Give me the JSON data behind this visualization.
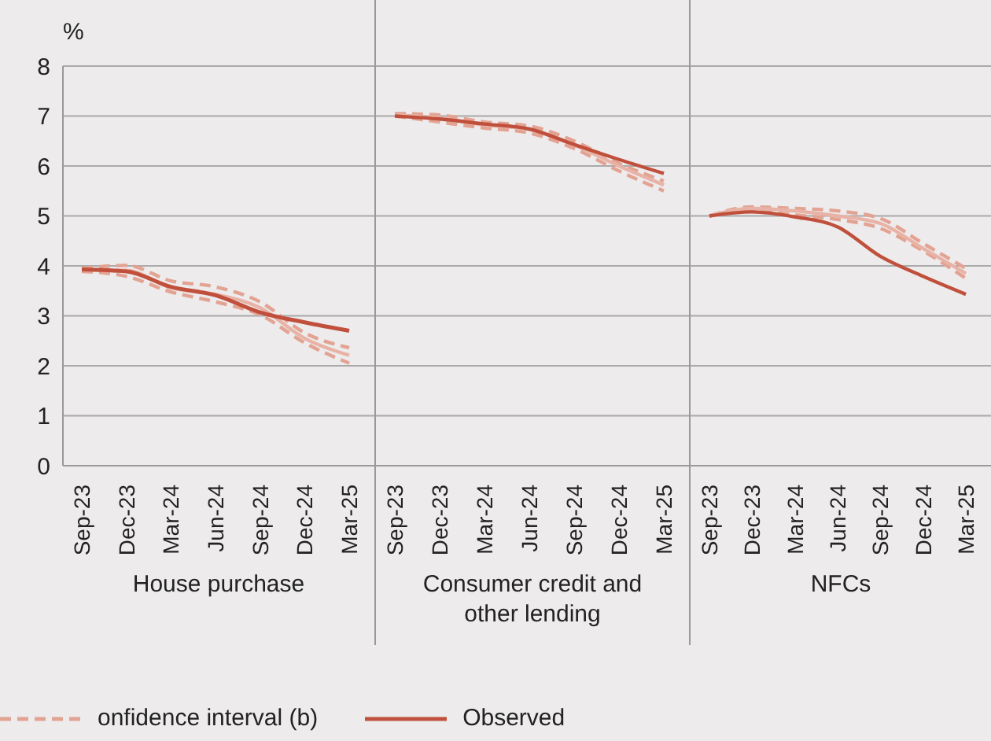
{
  "chart_data": [
    {
      "type": "line",
      "ylabel": "%",
      "xlabel": "House purchase",
      "categories": [
        "Sep-23",
        "Dec-23",
        "Mar-24",
        "Jun-24",
        "Sep-24",
        "Dec-24",
        "Mar-25"
      ],
      "ylim": [
        0,
        8
      ],
      "yticks": [
        0,
        1,
        2,
        3,
        4,
        5,
        6,
        7,
        8
      ],
      "grid": "y",
      "legend": "bottom",
      "series": [
        {
          "name": "onfidence interval (b)",
          "color": "#e3a393",
          "line_style": "dashed",
          "values": [
            3.95,
            4.01,
            3.7,
            3.58,
            3.28,
            2.66,
            2.36
          ]
        },
        {
          "color": "#e3a393",
          "line_style": "dashed",
          "values": [
            3.89,
            3.79,
            3.48,
            3.28,
            3.02,
            2.46,
            2.05
          ]
        },
        {
          "color": "#e8b3a6",
          "line_style": "solid",
          "values": [
            3.92,
            3.91,
            3.56,
            3.43,
            3.16,
            2.55,
            2.21
          ]
        },
        {
          "name": "Observed",
          "color": "#c0503c",
          "line_style": "solid",
          "values": [
            3.93,
            3.89,
            3.58,
            3.41,
            3.07,
            2.87,
            2.7
          ]
        }
      ]
    },
    {
      "type": "line",
      "xlabel": "Consumer credit and other lending",
      "categories": [
        "Sep-23",
        "Dec-23",
        "Mar-24",
        "Jun-24",
        "Sep-24",
        "Dec-24",
        "Mar-25"
      ],
      "ylim": [
        0,
        8
      ],
      "yticks": [
        0,
        1,
        2,
        3,
        4,
        5,
        6,
        7,
        8
      ],
      "grid": "y",
      "tick_labels": "x",
      "series": [
        {
          "color": "#e3a393",
          "line_style": "dashed",
          "values": [
            7.05,
            7.02,
            6.88,
            6.8,
            6.5,
            6.05,
            5.7
          ]
        },
        {
          "color": "#e3a393",
          "line_style": "dashed",
          "values": [
            7.0,
            6.88,
            6.76,
            6.66,
            6.35,
            5.9,
            5.5
          ]
        },
        {
          "color": "#e8b3a6",
          "line_style": "solid",
          "values": [
            7.02,
            6.96,
            6.82,
            6.73,
            6.42,
            6.0,
            5.62
          ]
        },
        {
          "color": "#c0503c",
          "line_style": "solid",
          "values": [
            7.0,
            6.94,
            6.84,
            6.74,
            6.43,
            6.13,
            5.85
          ]
        }
      ]
    },
    {
      "type": "line",
      "xlabel": "NFCs",
      "categories": [
        "Sep-23",
        "Dec-23",
        "Mar-24",
        "Jun-24",
        "Sep-24",
        "Dec-24",
        "Mar-25"
      ],
      "ylim": [
        0,
        8
      ],
      "yticks": [
        0,
        1,
        2,
        3,
        4,
        5,
        6,
        7,
        8
      ],
      "grid": "y",
      "tick_labels": "x",
      "series": [
        {
          "color": "#e3a393",
          "line_style": "dashed",
          "values": [
            5.0,
            5.18,
            5.15,
            5.1,
            4.95,
            4.45,
            3.95
          ]
        },
        {
          "color": "#e3a393",
          "line_style": "dashed",
          "values": [
            5.0,
            5.1,
            5.02,
            4.93,
            4.75,
            4.3,
            3.75
          ]
        },
        {
          "color": "#e8b3a6",
          "line_style": "solid",
          "values": [
            5.0,
            5.15,
            5.1,
            5.0,
            4.85,
            4.35,
            3.85
          ]
        },
        {
          "color": "#c0503c",
          "line_style": "solid",
          "values": [
            5.0,
            5.08,
            4.98,
            4.78,
            4.19,
            3.79,
            3.43
          ]
        }
      ]
    }
  ]
}
